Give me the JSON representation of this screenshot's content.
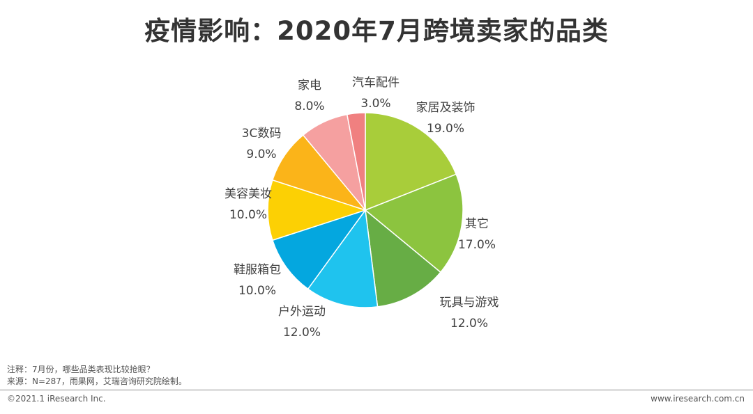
{
  "title": "疫情影响：2020年7月跨境卖家的品类",
  "chart_data": {
    "type": "pie",
    "title": "疫情影响：2020年7月跨境卖家的品类",
    "unit": "%",
    "start_angle_deg": 0,
    "direction": "clockwise",
    "slices": [
      {
        "label": "家居及装饰",
        "value": 19.0,
        "value_label": "19.0%",
        "color": "#a8cd3a"
      },
      {
        "label": "其它",
        "value": 17.0,
        "value_label": "17.0%",
        "color": "#8cc43f"
      },
      {
        "label": "玩具与游戏",
        "value": 12.0,
        "value_label": "12.0%",
        "color": "#67ad45"
      },
      {
        "label": "户外运动",
        "value": 12.0,
        "value_label": "12.0%",
        "color": "#1fc3ee"
      },
      {
        "label": "鞋服箱包",
        "value": 10.0,
        "value_label": "10.0%",
        "color": "#04a7df"
      },
      {
        "label": "美容美妆",
        "value": 10.0,
        "value_label": "10.0%",
        "color": "#fcd004"
      },
      {
        "label": "3C数码",
        "value": 9.0,
        "value_label": "9.0%",
        "color": "#fbb419"
      },
      {
        "label": "家电",
        "value": 8.0,
        "value_label": "8.0%",
        "color": "#f5a0a0"
      },
      {
        "label": "汽车配件",
        "value": 3.0,
        "value_label": "3.0%",
        "color": "#f08080"
      }
    ]
  },
  "notes": {
    "note": "注释：7月份，哪些品类表现比较抢眼？",
    "source": "来源：N=287，雨果网，艾瑞咨询研究院绘制。"
  },
  "footer": {
    "copyright": "©2021.1 iResearch Inc.",
    "website": "www.iresearch.com.cn"
  }
}
